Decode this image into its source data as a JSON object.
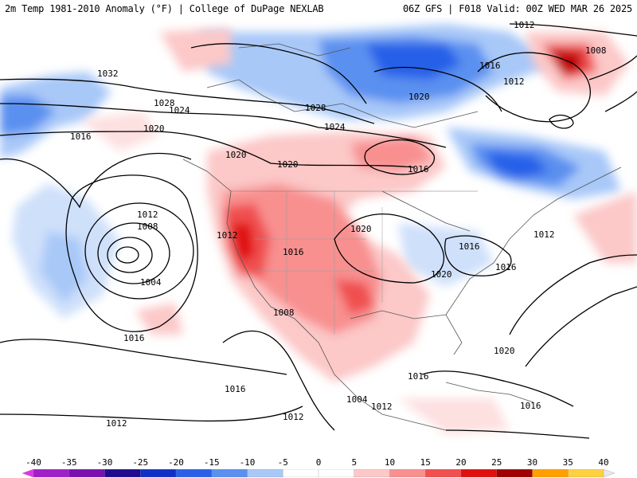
{
  "header": {
    "title_left": "2m Temp 1981-2010 Anomaly (°F) | College of DuPage NEXLAB",
    "title_right": "06Z GFS | F018 Valid: 00Z WED MAR 26 2025"
  },
  "isobar_labels": [
    "1012",
    "1008",
    "1016",
    "1012",
    "1032",
    "1028",
    "1024",
    "1020",
    "1016",
    "1028",
    "1024",
    "1020",
    "1016",
    "1020",
    "1020",
    "1012",
    "1008",
    "1004",
    "1012",
    "1016",
    "1020",
    "1016",
    "1020",
    "1016",
    "1012",
    "1008",
    "1016",
    "1016",
    "1016",
    "1012",
    "1004",
    "1012",
    "1012",
    "1016",
    "1020"
  ],
  "colorbar": {
    "ticks": [
      "-40",
      "-35",
      "-30",
      "-25",
      "-20",
      "-15",
      "-10",
      "-5",
      "0",
      "5",
      "10",
      "15",
      "20",
      "25",
      "30",
      "35",
      "40"
    ],
    "colors": [
      "#e632e6",
      "#a020c8",
      "#7a10b0",
      "#200a90",
      "#1030c8",
      "#2860e8",
      "#5a90f0",
      "#a8c8f8",
      "#ffffff",
      "#ffffff",
      "#fcc8c8",
      "#f89090",
      "#f05050",
      "#e01010",
      "#a00000",
      "#ffa000",
      "#ffd040",
      "#e8e8e8"
    ]
  }
}
